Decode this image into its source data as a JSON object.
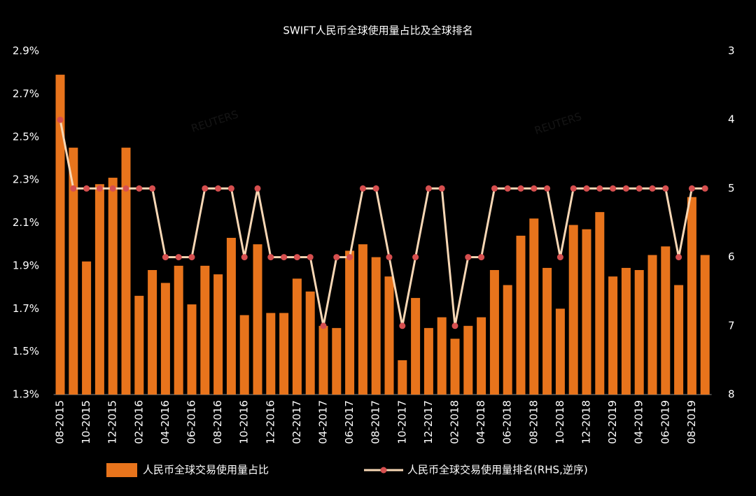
{
  "chart_data": {
    "type": "bar_line",
    "title": "SWIFT人民币全球使用量占比及全球排名",
    "watermark": "REUTERS",
    "categories": [
      "08-2015",
      null,
      "10-2015",
      null,
      "12-2015",
      null,
      "02-2016",
      null,
      "04-2016",
      null,
      "06-2016",
      null,
      "08-2016",
      null,
      "10-2016",
      null,
      "12-2016",
      null,
      "02-2017",
      null,
      "04-2017",
      null,
      "06-2017",
      null,
      "08-2017",
      null,
      "10-2017",
      null,
      "12-2017",
      null,
      "02-2018",
      null,
      "04-2018",
      null,
      "06-2018",
      null,
      "08-2018",
      null,
      "10-2018",
      null,
      "12-2018",
      null,
      "02-2019",
      null,
      "04-2019",
      null,
      "06-2019",
      null,
      "08-2019",
      null
    ],
    "series": [
      {
        "name": "人民币全球交易使用量占比",
        "type": "bar",
        "color": "#e8741c",
        "values": [
          2.79,
          2.45,
          1.92,
          2.28,
          2.31,
          2.45,
          1.76,
          1.88,
          1.82,
          1.9,
          1.72,
          1.9,
          1.86,
          2.03,
          1.67,
          2.0,
          1.68,
          1.68,
          1.84,
          1.78,
          1.62,
          1.61,
          1.97,
          2.0,
          1.94,
          1.85,
          1.46,
          1.75,
          1.61,
          1.66,
          1.56,
          1.62,
          1.66,
          1.88,
          1.81,
          2.04,
          2.12,
          1.89,
          1.7,
          2.09,
          2.07,
          2.15,
          1.85,
          1.89,
          1.88,
          1.95,
          1.99,
          1.81,
          2.22,
          1.95
        ]
      },
      {
        "name": "人民币全球交易使用量排名(RHS,逆序)",
        "type": "line",
        "axis": "y2",
        "color": "#f7d7b5",
        "marker_color": "#d64f4f",
        "values": [
          4,
          5,
          5,
          5,
          5,
          5,
          5,
          5,
          6,
          6,
          6,
          5,
          5,
          5,
          6,
          5,
          6,
          6,
          6,
          6,
          7,
          6,
          6,
          5,
          5,
          6,
          7,
          6,
          5,
          5,
          7,
          6,
          6,
          5,
          5,
          5,
          5,
          5,
          6,
          5,
          5,
          5,
          5,
          5,
          5,
          5,
          5,
          6,
          5,
          5
        ]
      }
    ],
    "ylim": [
      1.3,
      2.9
    ],
    "yticks": [
      {
        "value": 1.3,
        "label": "1.3%"
      },
      {
        "value": 1.5,
        "label": "1.5%"
      },
      {
        "value": 1.7,
        "label": "1.7%"
      },
      {
        "value": 1.9,
        "label": "1.9%"
      },
      {
        "value": 2.1,
        "label": "2.1%"
      },
      {
        "value": 2.3,
        "label": "2.3%"
      },
      {
        "value": 2.5,
        "label": "2.5%"
      },
      {
        "value": 2.7,
        "label": "2.7%"
      },
      {
        "value": 2.9,
        "label": "2.9%"
      }
    ],
    "y2lim": [
      3,
      8
    ],
    "y2ticks": [
      3,
      4,
      5,
      6,
      7,
      8
    ],
    "y2_reversed": true,
    "background": "#000000"
  }
}
